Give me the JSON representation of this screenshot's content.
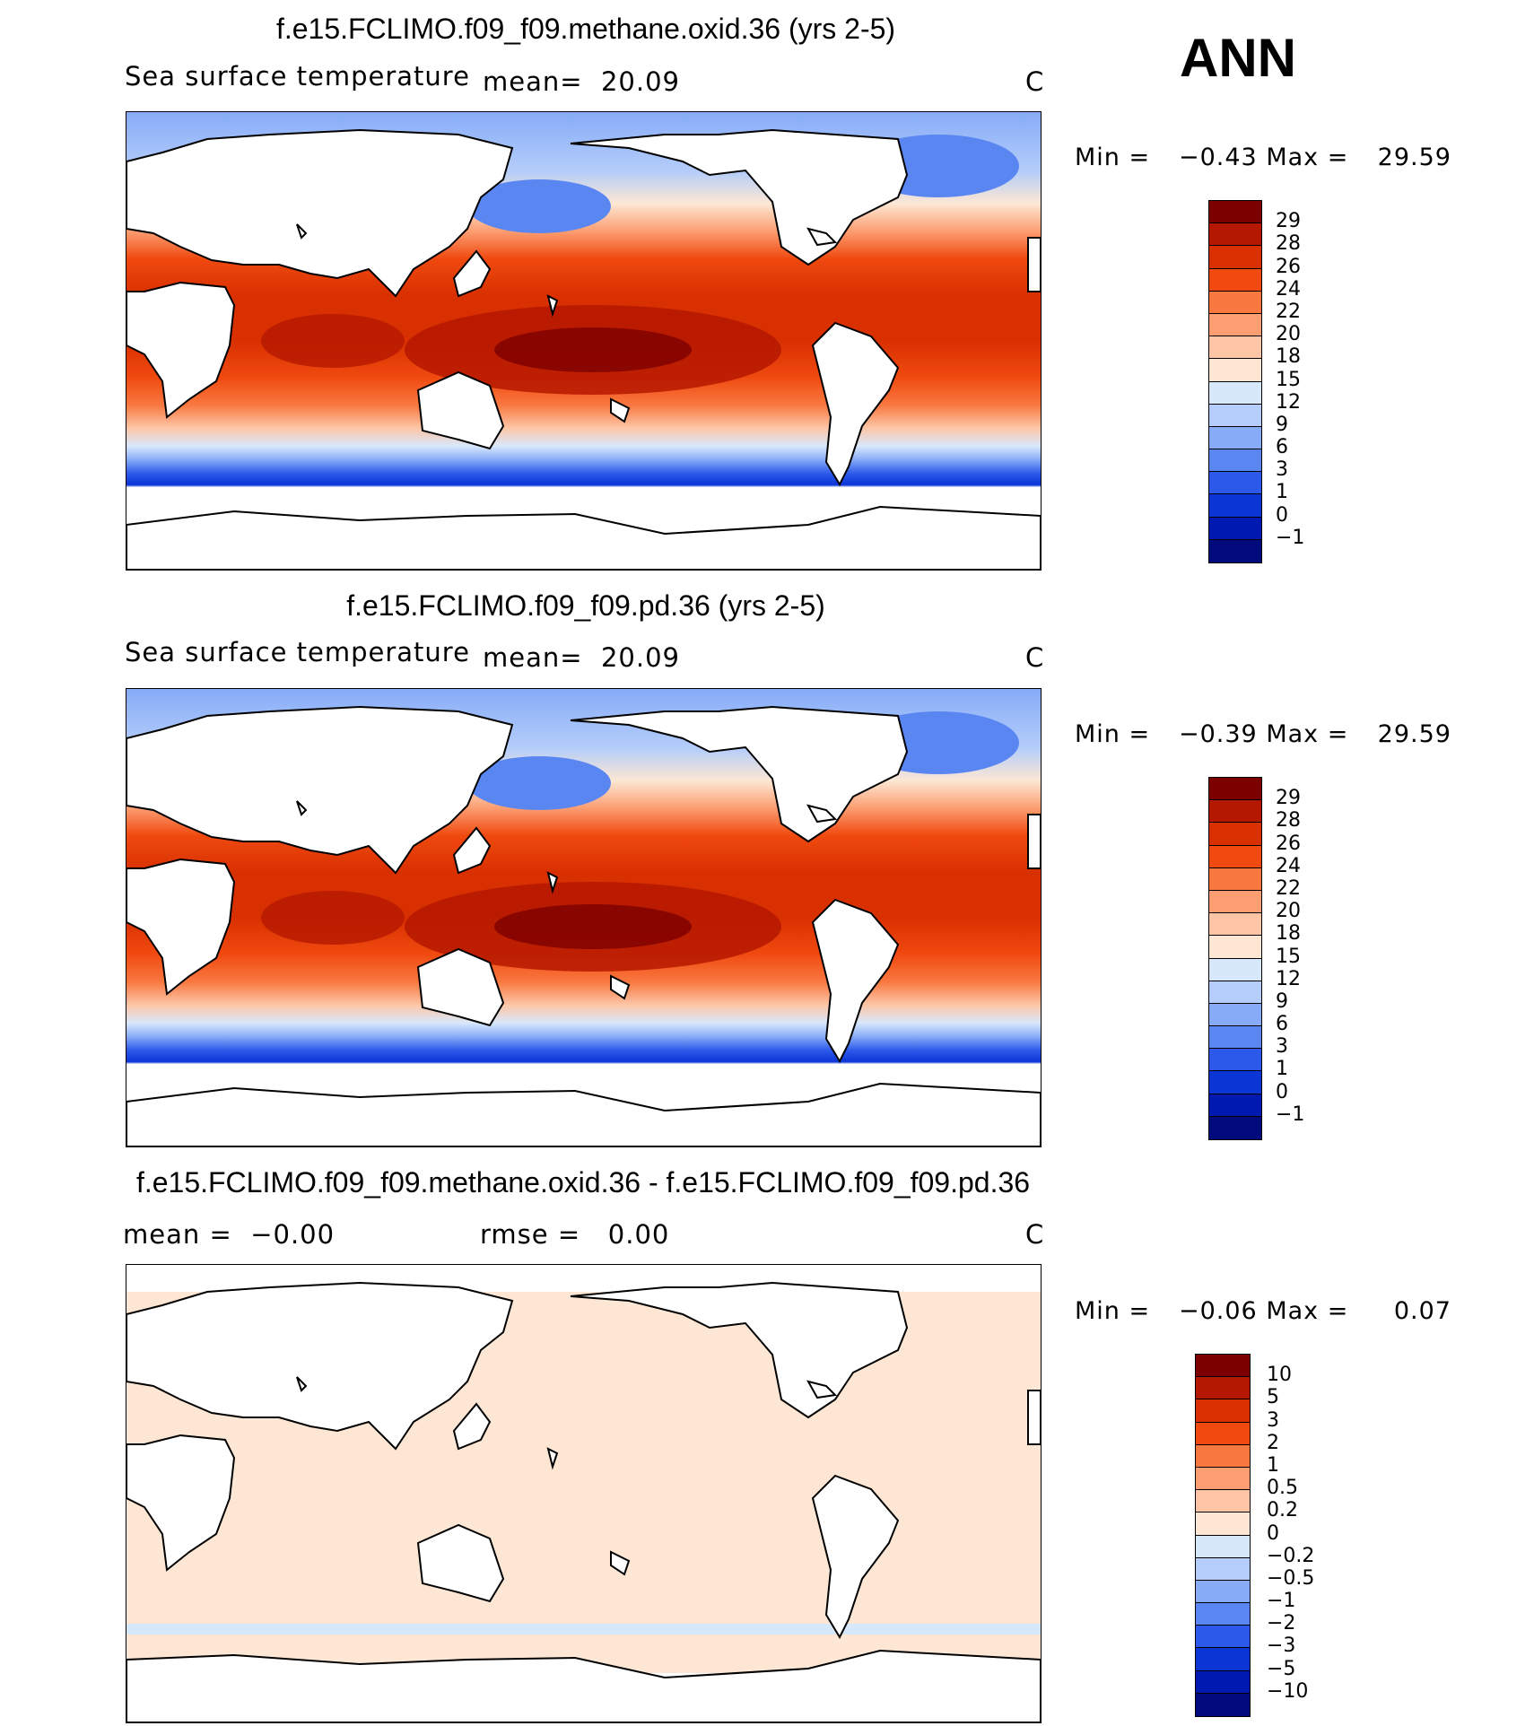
{
  "season": "ANN",
  "panels": [
    {
      "title": "f.e15.FCLIMO.f09_f09.methane.oxid.36 (yrs 2-5)",
      "left_text": "Sea surface temperature",
      "mid_text": "mean=  20.09",
      "units": "C",
      "min_label": "Min =",
      "min_value": "−0.43",
      "max_label": "Max =",
      "max_value": "29.59",
      "map_type": "absolute"
    },
    {
      "title": "f.e15.FCLIMO.f09_f09.pd.36 (yrs 2-5)",
      "left_text": "Sea surface temperature",
      "mid_text": "mean=  20.09",
      "units": "C",
      "min_label": "Min =",
      "min_value": "−0.39",
      "max_label": "Max =",
      "max_value": "29.59",
      "map_type": "absolute"
    },
    {
      "title": "f.e15.FCLIMO.f09_f09.methane.oxid.36 - f.e15.FCLIMO.f09_f09.pd.36",
      "left_text": "mean =  −0.00",
      "mid_text": "rmse =   0.00",
      "units": "C",
      "min_label": "Min =",
      "min_value": "−0.06",
      "max_label": "Max =",
      "max_value": "0.07",
      "map_type": "difference"
    }
  ],
  "colorbars": {
    "absolute": {
      "labels": [
        "29",
        "28",
        "26",
        "24",
        "22",
        "20",
        "18",
        "15",
        "12",
        "9",
        "6",
        "3",
        "1",
        "0",
        "−1"
      ],
      "colors": [
        "#7d0000",
        "#b51800",
        "#d83000",
        "#f04a10",
        "#f97840",
        "#fc9e72",
        "#fdc5a5",
        "#fde7d4",
        "#d8e8fb",
        "#b4cdfa",
        "#87abf7",
        "#5a86f2",
        "#2d59ea",
        "#0c35d6",
        "#0019b0",
        "#000a7c"
      ]
    },
    "difference": {
      "labels": [
        "10",
        "5",
        "3",
        "2",
        "1",
        "0.5",
        "0.2",
        "0",
        "−0.2",
        "−0.5",
        "−1",
        "−2",
        "−3",
        "−5",
        "−10"
      ],
      "colors": [
        "#7d0000",
        "#b51800",
        "#d83000",
        "#f04a10",
        "#f97840",
        "#fc9e72",
        "#fdc5a5",
        "#fde7d4",
        "#d8e8fb",
        "#b4cdfa",
        "#87abf7",
        "#5a86f2",
        "#2d59ea",
        "#0c35d6",
        "#0019b0",
        "#000a7c"
      ]
    }
  }
}
